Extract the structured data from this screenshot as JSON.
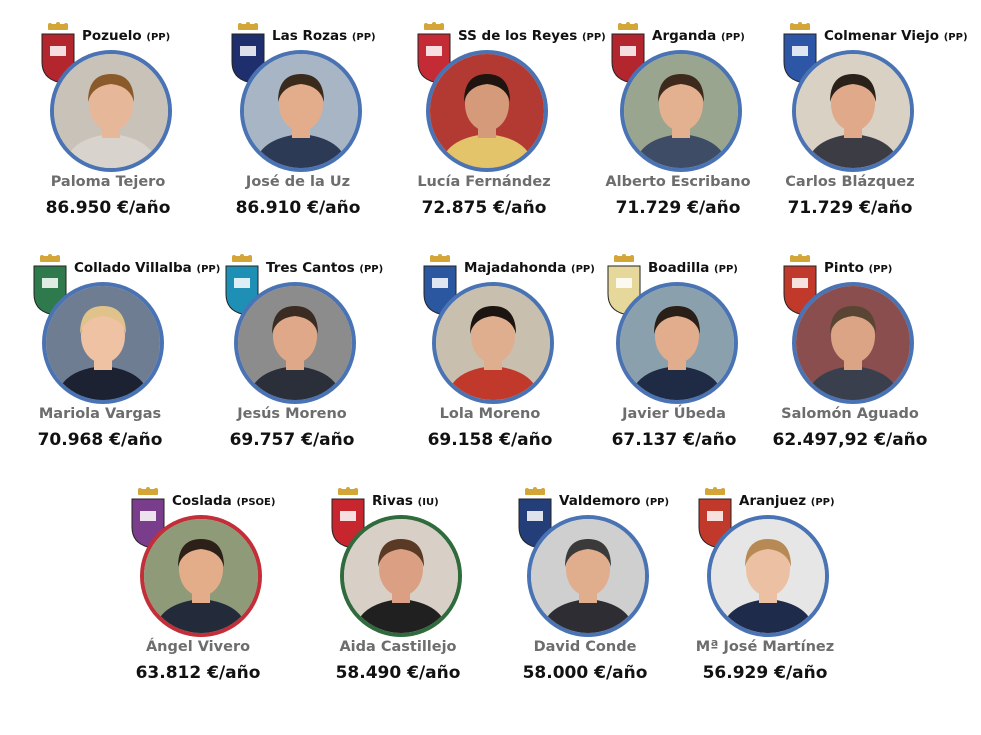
{
  "mayors": [
    {
      "town": "Pozuelo",
      "party": "(PP)",
      "name": "Paloma Tejero",
      "salary": "86.950  €/año",
      "ring": "#4a73b4",
      "crest": "#b3262e",
      "hair": "#8a5a2b",
      "skin": "#e7b799",
      "bg": "#c9c2b8",
      "shirt": "#d8d3cc"
    },
    {
      "town": "Las Rozas",
      "party": "(PP)",
      "name": "José de la Uz",
      "salary": "86.910  €/año",
      "ring": "#4a73b4",
      "crest": "#1f2f6e",
      "hair": "#3a2a1c",
      "skin": "#e3ad8b",
      "bg": "#a8b5c4",
      "shirt": "#2d3a55"
    },
    {
      "town": "SS de los Reyes",
      "party": "(PP)",
      "name": "Lucía Fernández",
      "salary": "72.875 €/año",
      "ring": "#4a73b4",
      "crest": "#c52b35",
      "hair": "#1f1410",
      "skin": "#d49a7a",
      "bg": "#b33a32",
      "shirt": "#e4c46a"
    },
    {
      "town": "Arganda",
      "party": "(PP)",
      "name": "Alberto Escribano",
      "salary": "71.729 €/año",
      "ring": "#4a73b4",
      "crest": "#b3262e",
      "hair": "#3d2a1c",
      "skin": "#e3b090",
      "bg": "#9aa58f",
      "shirt": "#3e4c66"
    },
    {
      "town": "Colmenar Viejo",
      "party": "(PP)",
      "name": "Carlos Blázquez",
      "salary": "71.729 €/año",
      "ring": "#4a73b4",
      "crest": "#2d57a6",
      "hair": "#2a211b",
      "skin": "#e0a98a",
      "bg": "#d9d2c4",
      "shirt": "#3c3c45"
    },
    {
      "town": "Collado Villalba",
      "party": "(PP)",
      "name": "Mariola Vargas",
      "salary": "70.968 €/año",
      "ring": "#4a73b4",
      "crest": "#2f7a4c",
      "hair": "#e0c38a",
      "skin": "#efc2a4",
      "bg": "#6f7d93",
      "shirt": "#1d2232"
    },
    {
      "town": "Tres Cantos",
      "party": "(PP)",
      "name": "Jesús Moreno",
      "salary": "69.757 €/año",
      "ring": "#4a73b4",
      "crest": "#1e8fb5",
      "hair": "#3a2c22",
      "skin": "#dfa889",
      "bg": "#8c8c8c",
      "shirt": "#2b2f3a"
    },
    {
      "town": "Majadahonda",
      "party": "(PP)",
      "name": "Lola Moreno",
      "salary": "69.158 €/año",
      "ring": "#4a73b4",
      "crest": "#2a57a0",
      "hair": "#1c1410",
      "skin": "#dfae8f",
      "bg": "#c9bfae",
      "shirt": "#c0392b"
    },
    {
      "town": "Boadilla",
      "party": "(PP)",
      "name": "Javier Úbeda",
      "salary": "67.137 €/año",
      "ring": "#4a73b4",
      "crest": "#e6d89a",
      "hair": "#2a1f18",
      "skin": "#e2ad8c",
      "bg": "#8ba0ad",
      "shirt": "#1f2a44"
    },
    {
      "town": "Pinto",
      "party": "(PP)",
      "name": "Salomón Aguado",
      "salary": "62.497,92 €/año",
      "ring": "#4a73b4",
      "crest": "#c0392b",
      "hair": "#5a4535",
      "skin": "#dba585",
      "bg": "#8a4e4e",
      "shirt": "#3a3f4d"
    },
    {
      "town": "Coslada",
      "party": "(PSOE)",
      "name": "Ángel Vivero",
      "salary": "63.812 €/año",
      "ring": "#c22f38",
      "crest": "#7a3d8c",
      "hair": "#2c2018",
      "skin": "#e3ad8a",
      "bg": "#8f9a78",
      "shirt": "#232a3a"
    },
    {
      "town": "Rivas",
      "party": "(IU)",
      "name": "Aida Castillejo",
      "salary": "58.490 €/año",
      "ring": "#2f6b3d",
      "crest": "#c8262f",
      "hair": "#5a3a24",
      "skin": "#dba083",
      "bg": "#d8d0c6",
      "shirt": "#202020"
    },
    {
      "town": "Valdemoro",
      "party": "(PP)",
      "name": "David Conde",
      "salary": "58.000 €/año",
      "ring": "#4a73b4",
      "crest": "#243e7a",
      "hair": "#3a3a3a",
      "skin": "#e0ad8d",
      "bg": "#cfcfcf",
      "shirt": "#2d2d33"
    },
    {
      "town": "Aranjuez",
      "party": "(PP)",
      "name": "Mª José Martínez",
      "salary": "56.929 €/año",
      "ring": "#4a73b4",
      "crest": "#c0392b",
      "hair": "#b78a55",
      "skin": "#ecc1a3",
      "bg": "#e6e6e6",
      "shirt": "#1f2b4a"
    }
  ]
}
